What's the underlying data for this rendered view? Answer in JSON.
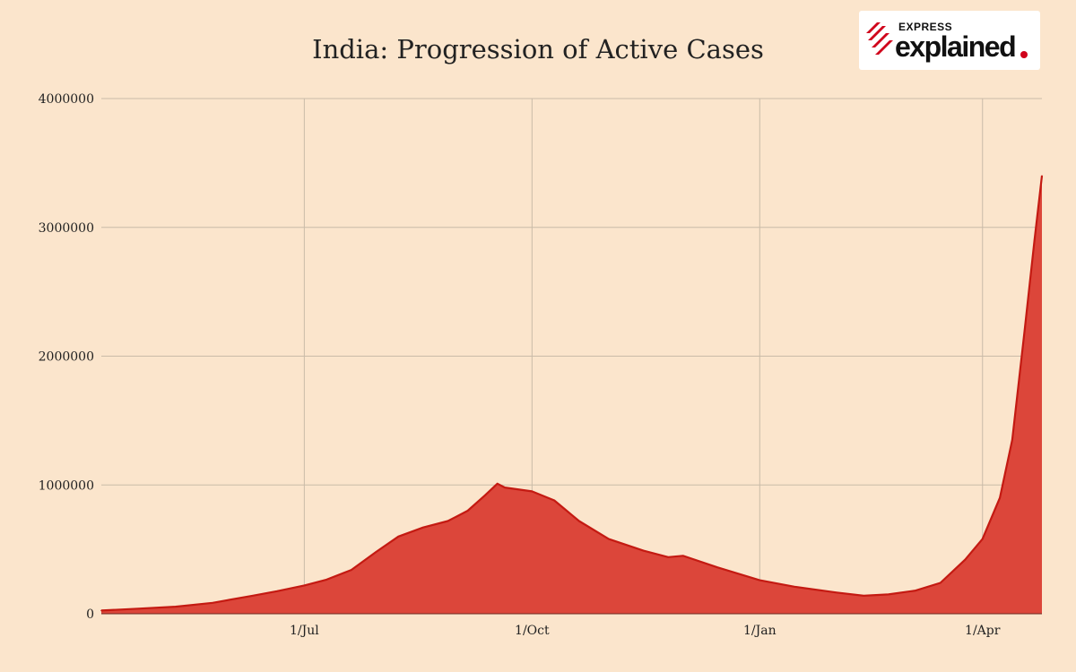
{
  "title": "India: Progression of Active Cases",
  "logo": {
    "kicker": "EXPRESS",
    "word": "explained"
  },
  "colors": {
    "background": "#fbe5cc",
    "area_fill": "#dc463a",
    "line": "#c41a12",
    "grid": "#c9bba8"
  },
  "chart_data": {
    "type": "area",
    "title": "India: Progression of Active Cases",
    "xlabel": "",
    "ylabel": "",
    "ylim": [
      0,
      4000000
    ],
    "xlim": [
      "2020-04-10",
      "2021-04-25"
    ],
    "grid": true,
    "legend": "none",
    "y_ticks": [
      {
        "value": 0,
        "label": "0"
      },
      {
        "value": 1000000,
        "label": "1000000"
      },
      {
        "value": 2000000,
        "label": "2000000"
      },
      {
        "value": 3000000,
        "label": "3000000"
      },
      {
        "value": 4000000,
        "label": "4000000"
      }
    ],
    "x_ticks": [
      {
        "date": "2020-07-01",
        "label": "1/Jul"
      },
      {
        "date": "2020-10-01",
        "label": "1/Oct"
      },
      {
        "date": "2021-01-01",
        "label": "1/Jan"
      },
      {
        "date": "2021-04-01",
        "label": "1/Apr"
      }
    ],
    "series": [
      {
        "points": [
          [
            "2020-04-10",
            25000
          ],
          [
            "2020-04-25",
            40000
          ],
          [
            "2020-05-10",
            55000
          ],
          [
            "2020-05-25",
            85000
          ],
          [
            "2020-06-10",
            140000
          ],
          [
            "2020-06-20",
            175000
          ],
          [
            "2020-07-01",
            220000
          ],
          [
            "2020-07-10",
            265000
          ],
          [
            "2020-07-20",
            340000
          ],
          [
            "2020-07-30",
            480000
          ],
          [
            "2020-08-08",
            600000
          ],
          [
            "2020-08-18",
            670000
          ],
          [
            "2020-08-28",
            720000
          ],
          [
            "2020-09-05",
            800000
          ],
          [
            "2020-09-12",
            920000
          ],
          [
            "2020-09-17",
            1010000
          ],
          [
            "2020-09-20",
            980000
          ],
          [
            "2020-10-01",
            950000
          ],
          [
            "2020-10-10",
            880000
          ],
          [
            "2020-10-20",
            720000
          ],
          [
            "2020-11-01",
            580000
          ],
          [
            "2020-11-15",
            490000
          ],
          [
            "2020-11-25",
            440000
          ],
          [
            "2020-12-01",
            450000
          ],
          [
            "2020-12-15",
            360000
          ],
          [
            "2021-01-01",
            260000
          ],
          [
            "2021-01-15",
            210000
          ],
          [
            "2021-02-01",
            165000
          ],
          [
            "2021-02-12",
            140000
          ],
          [
            "2021-02-22",
            150000
          ],
          [
            "2021-03-05",
            180000
          ],
          [
            "2021-03-15",
            240000
          ],
          [
            "2021-03-25",
            420000
          ],
          [
            "2021-04-01",
            580000
          ],
          [
            "2021-04-08",
            900000
          ],
          [
            "2021-04-13",
            1350000
          ],
          [
            "2021-04-18",
            2200000
          ],
          [
            "2021-04-22",
            2900000
          ],
          [
            "2021-04-25",
            3400000
          ]
        ]
      }
    ]
  }
}
